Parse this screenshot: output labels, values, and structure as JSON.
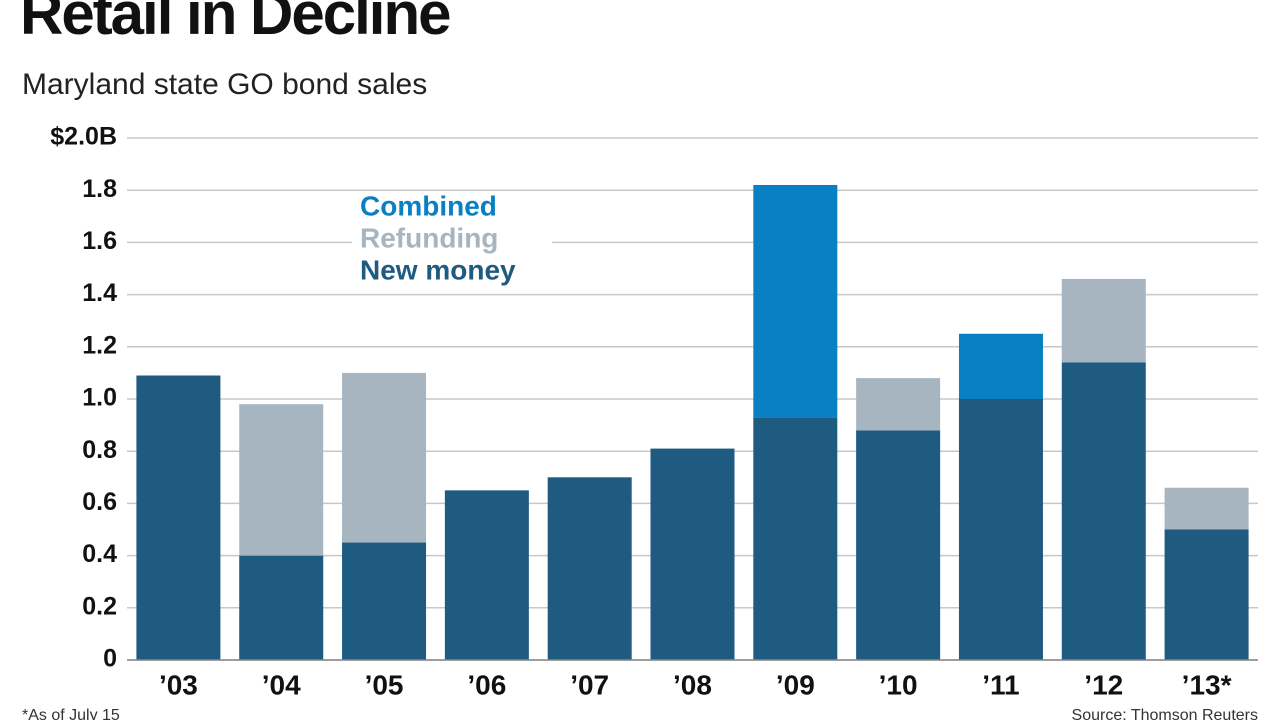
{
  "chart_data": {
    "type": "stacked-bar",
    "title": "Retail in Decline",
    "subtitle": "Maryland state GO bond sales",
    "categories": [
      "’03",
      "’04",
      "’05",
      "’06",
      "’07",
      "’08",
      "’09",
      "’10",
      "’11",
      "’12",
      "’13*"
    ],
    "series": [
      {
        "name": "New money",
        "color": "#1f5a80",
        "values": [
          1.09,
          0.4,
          0.45,
          0.65,
          0.7,
          0.81,
          0.93,
          0.88,
          1.0,
          1.14,
          0.5
        ]
      },
      {
        "name": "Refunding",
        "color": "#a6b5c0",
        "values": [
          null,
          0.58,
          0.65,
          null,
          null,
          null,
          null,
          0.2,
          null,
          0.32,
          0.16
        ]
      },
      {
        "name": "Combined",
        "color": "#0a80c4",
        "values": [
          null,
          null,
          null,
          null,
          null,
          null,
          0.89,
          null,
          0.25,
          null,
          null
        ]
      }
    ],
    "ylim": [
      0,
      2.0
    ],
    "yticks": [
      0,
      0.2,
      0.4,
      0.6,
      0.8,
      {
        "value": 1.0,
        "label": "1.0"
      },
      1.2,
      1.4,
      1.6,
      1.8,
      {
        "value": 2.0,
        "label": "$2.0B"
      }
    ],
    "grid": true,
    "footnote": "*As of July 15",
    "source": "Source: Thomson Reuters"
  }
}
